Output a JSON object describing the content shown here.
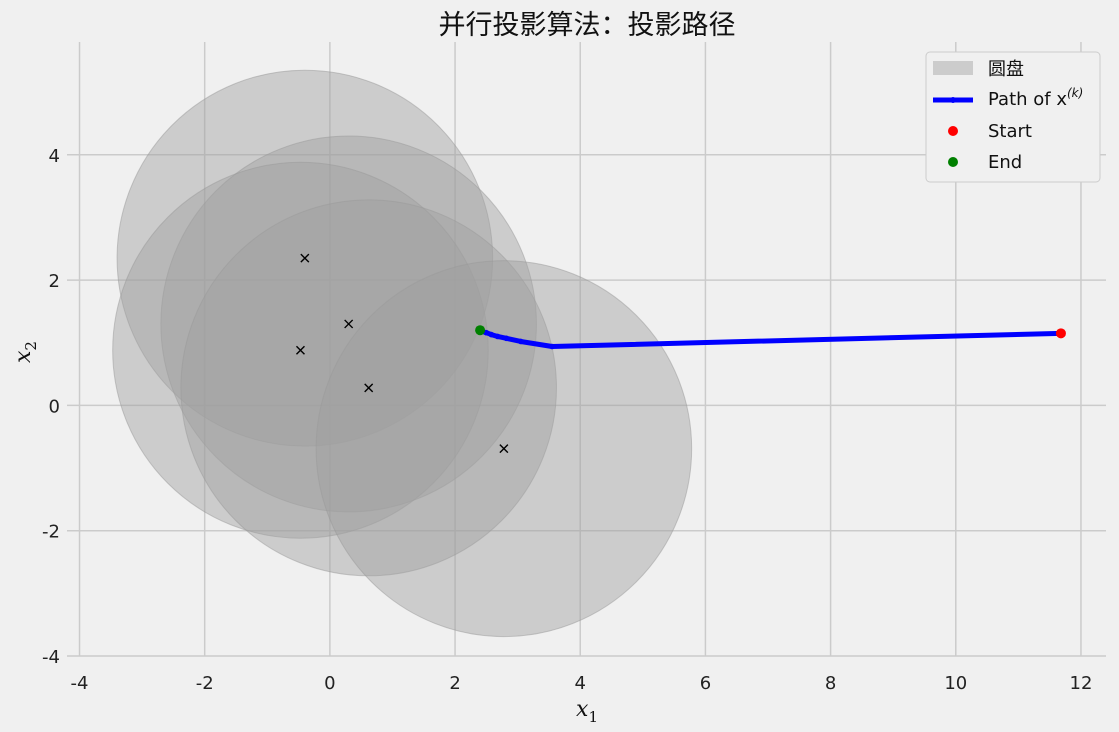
{
  "chart_data": {
    "type": "scatter",
    "title": "并行投影算法：投影路径",
    "xlabel": "x",
    "xlabel_sub": "1",
    "ylabel": "x",
    "ylabel_sub": "2",
    "xlim": [
      -4.2,
      12.4
    ],
    "ylim": [
      -4.0,
      5.8
    ],
    "xticks": [
      -4,
      -2,
      0,
      2,
      4,
      6,
      8,
      10,
      12
    ],
    "xtick_labels": [
      "-4",
      "-2",
      "0",
      "2",
      "4",
      "6",
      "8",
      "10",
      "12"
    ],
    "yticks": [
      -4,
      -2,
      0,
      2,
      4
    ],
    "ytick_labels": [
      "-4",
      "-2",
      "0",
      "2",
      "4"
    ],
    "grid": true,
    "legend_position": "top-right",
    "disks": {
      "name": "圆盘",
      "radius": 3.0,
      "color": "#a0a0a0",
      "centers": [
        {
          "x": -0.4,
          "y": 2.35
        },
        {
          "x": 0.3,
          "y": 1.3
        },
        {
          "x": -0.47,
          "y": 0.88
        },
        {
          "x": 0.62,
          "y": 0.28
        },
        {
          "x": 2.78,
          "y": -0.69
        }
      ]
    },
    "path": {
      "name": "Path of x",
      "name_sup": "(k)",
      "color": "#0000ff",
      "points": [
        {
          "x": 11.68,
          "y": 1.15
        },
        {
          "x": 3.55,
          "y": 0.94
        },
        {
          "x": 3.05,
          "y": 1.02
        },
        {
          "x": 2.82,
          "y": 1.07
        },
        {
          "x": 2.68,
          "y": 1.1
        },
        {
          "x": 2.58,
          "y": 1.13
        },
        {
          "x": 2.5,
          "y": 1.16
        },
        {
          "x": 2.44,
          "y": 1.18
        },
        {
          "x": 2.4,
          "y": 1.2
        }
      ]
    },
    "start": {
      "name": "Start",
      "x": 11.68,
      "y": 1.15,
      "color": "#ff0000"
    },
    "end": {
      "name": "End",
      "x": 2.4,
      "y": 1.2,
      "color": "#008000"
    }
  }
}
